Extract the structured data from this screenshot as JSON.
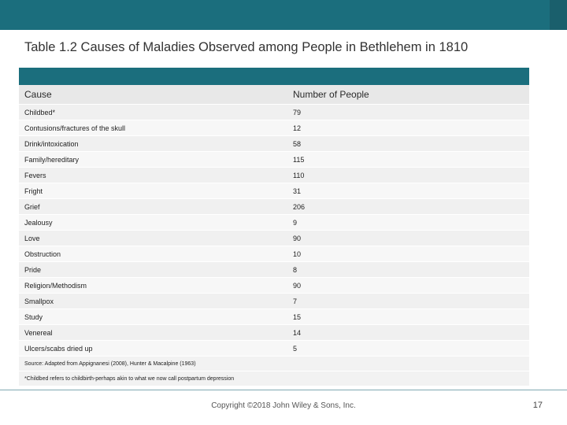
{
  "slide": {
    "title": "Table 1.2 Causes of Maladies Observed among People in Bethlehem in 1810",
    "copyright": "Copyright ©2018 John Wiley & Sons, Inc.",
    "page_number": "17",
    "accent_color": "#1b6e7d"
  },
  "table": {
    "headers": {
      "cause": "Cause",
      "count": "Number of People"
    },
    "rows": [
      {
        "cause": "Childbed*",
        "count": "79"
      },
      {
        "cause": "Contusions/fractures of the skull",
        "count": "12"
      },
      {
        "cause": "Drink/intoxication",
        "count": "58"
      },
      {
        "cause": "Family/hereditary",
        "count": "115"
      },
      {
        "cause": "Fevers",
        "count": "110"
      },
      {
        "cause": "Fright",
        "count": "31"
      },
      {
        "cause": "Grief",
        "count": "206"
      },
      {
        "cause": "Jealousy",
        "count": "9"
      },
      {
        "cause": "Love",
        "count": "90"
      },
      {
        "cause": "Obstruction",
        "count": "10"
      },
      {
        "cause": "Pride",
        "count": "8"
      },
      {
        "cause": "Religion/Methodism",
        "count": "90"
      },
      {
        "cause": "Smallpox",
        "count": "7"
      },
      {
        "cause": "Study",
        "count": "15"
      },
      {
        "cause": "Venereal",
        "count": "14"
      },
      {
        "cause": "Ulcers/scabs dried up",
        "count": "5"
      }
    ],
    "source": "Source: Adapted from Appignanesi (2008), Hunter & Macalpine (1963)",
    "footnote": "*Childbed refers to childbirth-perhaps akin to what we now call postpartum depression"
  }
}
